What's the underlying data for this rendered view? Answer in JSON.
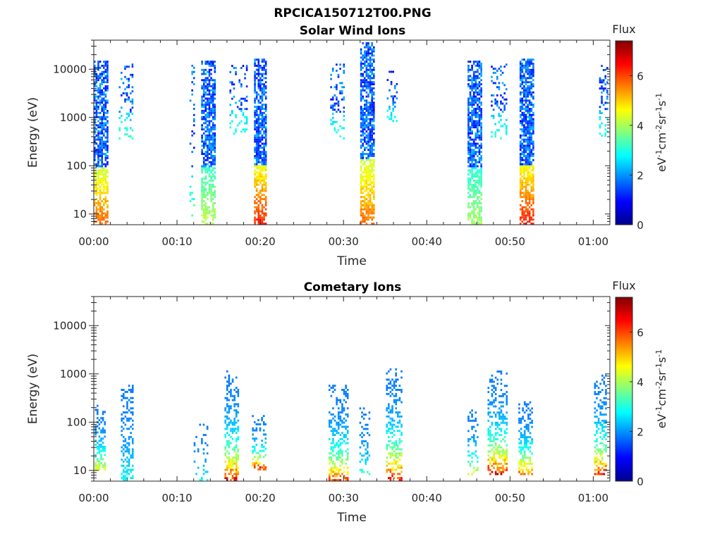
{
  "figure": {
    "title": "RPCICA150712T00.PNG"
  },
  "colormap": [
    "#00008f",
    "#0000ff",
    "#0080ff",
    "#00ffff",
    "#80ff80",
    "#ffff00",
    "#ff8000",
    "#ff0000",
    "#800000"
  ],
  "chart_data": [
    {
      "type": "heatmap",
      "title": "Solar Wind Ions",
      "xlabel": "Time",
      "ylabel": "Energy (eV)",
      "x_unit": "minutes since 00:00",
      "xlim": [
        0,
        62
      ],
      "x_ticks": [
        {
          "value": 0,
          "label": "00:00"
        },
        {
          "value": 10,
          "label": "00:10"
        },
        {
          "value": 20,
          "label": "00:20"
        },
        {
          "value": 30,
          "label": "00:30"
        },
        {
          "value": 40,
          "label": "00:40"
        },
        {
          "value": 50,
          "label": "00:50"
        },
        {
          "value": 60,
          "label": "01:00"
        }
      ],
      "yscale": "log",
      "ylim": [
        6,
        40000
      ],
      "y_ticks": [
        {
          "value": 10,
          "label": "10"
        },
        {
          "value": 100,
          "label": "100"
        },
        {
          "value": 1000,
          "label": "1000"
        },
        {
          "value": 10000,
          "label": "10000"
        }
      ],
      "colorbar": {
        "title": "Flux",
        "unit_label": "eV-1cm-2sr-1s-1",
        "range": [
          0,
          7.4
        ],
        "ticks": [
          {
            "value": 0,
            "label": "0"
          },
          {
            "value": 2,
            "label": "2"
          },
          {
            "value": 4,
            "label": "4"
          },
          {
            "value": 6,
            "label": "6"
          }
        ]
      },
      "bursts": [
        {
          "t": 0.8,
          "w": 1.6,
          "e_low": 6,
          "e_high": 15000,
          "peak": 5.0,
          "density": 0.75
        },
        {
          "t": 3.8,
          "w": 1.6,
          "e_low": 350,
          "e_high": 13000,
          "peak": 2.0,
          "density": 0.25
        },
        {
          "t": 11.8,
          "w": 0.6,
          "e_low": 6,
          "e_high": 12000,
          "peak": 2.4,
          "density": 0.15
        },
        {
          "t": 13.7,
          "w": 1.6,
          "e_low": 6,
          "e_high": 15000,
          "peak": 3.2,
          "density": 0.75
        },
        {
          "t": 17.3,
          "w": 2.0,
          "e_low": 400,
          "e_high": 12000,
          "peak": 2.0,
          "density": 0.2
        },
        {
          "t": 20.0,
          "w": 1.5,
          "e_low": 6,
          "e_high": 16000,
          "peak": 5.6,
          "density": 0.8
        },
        {
          "t": 29.2,
          "w": 1.6,
          "e_low": 350,
          "e_high": 13000,
          "peak": 2.0,
          "density": 0.25
        },
        {
          "t": 32.8,
          "w": 1.6,
          "e_low": 6,
          "e_high": 35000,
          "peak": 5.0,
          "density": 0.8
        },
        {
          "t": 35.8,
          "w": 1.2,
          "e_low": 600,
          "e_high": 9000,
          "peak": 2.0,
          "density": 0.25
        },
        {
          "t": 45.7,
          "w": 1.6,
          "e_low": 6,
          "e_high": 15000,
          "peak": 3.0,
          "density": 0.8
        },
        {
          "t": 48.6,
          "w": 1.8,
          "e_low": 350,
          "e_high": 13000,
          "peak": 2.0,
          "density": 0.25
        },
        {
          "t": 52.0,
          "w": 1.7,
          "e_low": 6,
          "e_high": 16000,
          "peak": 5.6,
          "density": 0.8
        },
        {
          "t": 61.3,
          "w": 1.2,
          "e_low": 400,
          "e_high": 12000,
          "peak": 2.0,
          "density": 0.3
        }
      ]
    },
    {
      "type": "heatmap",
      "title": "Cometary Ions",
      "xlabel": "Time",
      "ylabel": "Energy (eV)",
      "x_unit": "minutes since 00:00",
      "xlim": [
        0,
        62
      ],
      "x_ticks": [
        {
          "value": 0,
          "label": "00:00"
        },
        {
          "value": 10,
          "label": "00:10"
        },
        {
          "value": 20,
          "label": "00:20"
        },
        {
          "value": 30,
          "label": "00:30"
        },
        {
          "value": 40,
          "label": "00:40"
        },
        {
          "value": 50,
          "label": "00:50"
        },
        {
          "value": 60,
          "label": "01:00"
        }
      ],
      "yscale": "log",
      "ylim": [
        6,
        40000
      ],
      "y_ticks": [
        {
          "value": 10,
          "label": "10"
        },
        {
          "value": 100,
          "label": "100"
        },
        {
          "value": 1000,
          "label": "1000"
        },
        {
          "value": 10000,
          "label": "10000"
        }
      ],
      "colorbar": {
        "title": "Flux",
        "unit_label": "eV-1cm-2sr-1s-1",
        "range": [
          0,
          7.4
        ],
        "ticks": [
          {
            "value": 0,
            "label": "0"
          },
          {
            "value": 2,
            "label": "2"
          },
          {
            "value": 4,
            "label": "4"
          },
          {
            "value": 6,
            "label": "6"
          }
        ]
      },
      "bursts": [
        {
          "t": 0.6,
          "w": 1.4,
          "e_low": 10,
          "e_high": 220,
          "peak": 5.0,
          "density": 0.55
        },
        {
          "t": 4.0,
          "w": 1.5,
          "e_low": 6,
          "e_high": 650,
          "peak": 3.0,
          "density": 0.5
        },
        {
          "t": 12.8,
          "w": 1.6,
          "e_low": 6,
          "e_high": 90,
          "peak": 3.0,
          "density": 0.25
        },
        {
          "t": 16.5,
          "w": 1.6,
          "e_low": 6,
          "e_high": 1100,
          "peak": 7.2,
          "density": 0.6
        },
        {
          "t": 19.8,
          "w": 1.6,
          "e_low": 10,
          "e_high": 130,
          "peak": 7.0,
          "density": 0.5
        },
        {
          "t": 29.3,
          "w": 2.2,
          "e_low": 6,
          "e_high": 550,
          "peak": 6.5,
          "density": 0.55
        },
        {
          "t": 32.5,
          "w": 1.2,
          "e_low": 8,
          "e_high": 200,
          "peak": 3.5,
          "density": 0.3
        },
        {
          "t": 36.0,
          "w": 1.8,
          "e_low": 6,
          "e_high": 1300,
          "peak": 7.2,
          "density": 0.5
        },
        {
          "t": 45.5,
          "w": 1.2,
          "e_low": 8,
          "e_high": 200,
          "peak": 5.0,
          "density": 0.4
        },
        {
          "t": 48.4,
          "w": 2.2,
          "e_low": 8,
          "e_high": 1100,
          "peak": 7.3,
          "density": 0.55
        },
        {
          "t": 51.8,
          "w": 1.6,
          "e_low": 8,
          "e_high": 250,
          "peak": 6.5,
          "density": 0.55
        },
        {
          "t": 60.8,
          "w": 1.4,
          "e_low": 8,
          "e_high": 950,
          "peak": 7.0,
          "density": 0.5
        }
      ]
    }
  ]
}
